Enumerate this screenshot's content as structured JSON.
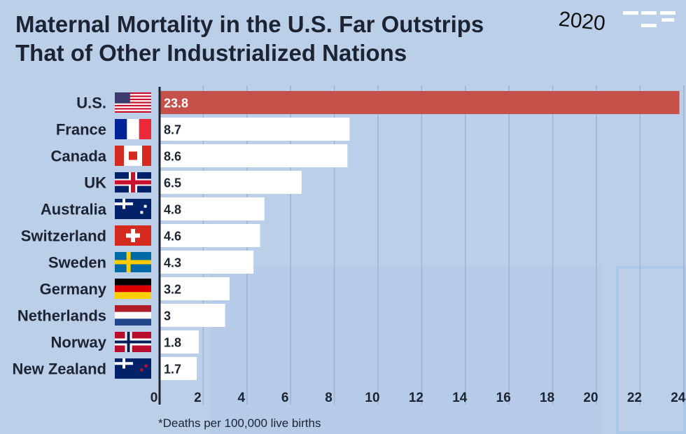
{
  "chart_data": {
    "type": "bar",
    "orientation": "horizontal",
    "title": "Maternal Mortality in the U.S. Far Outstrips That of Other Industrialized Nations",
    "annotation": "2020",
    "footnote": "*Deaths per 100,000 live births",
    "categories": [
      "U.S.",
      "France",
      "Canada",
      "UK",
      "Australia",
      "Switzerland",
      "Sweden",
      "Germany",
      "Netherlands",
      "Norway",
      "New Zealand"
    ],
    "values": [
      23.8,
      8.7,
      8.6,
      6.5,
      4.8,
      4.6,
      4.3,
      3.2,
      3,
      1.8,
      1.7
    ],
    "value_labels": [
      "23.8",
      "8.7",
      "8.6",
      "6.5",
      "4.8",
      "4.6",
      "4.3",
      "3.2",
      "3",
      "1.8",
      "1.7"
    ],
    "xlim": [
      0,
      24
    ],
    "xticks": [
      "0",
      "2",
      "4",
      "6",
      "8",
      "10",
      "12",
      "14",
      "16",
      "18",
      "20",
      "22",
      "24"
    ],
    "grid": true,
    "colors": {
      "highlight": "#c5514a",
      "bar": "#ffffff",
      "text": "#1c2333",
      "background": "#bccfe9"
    }
  }
}
